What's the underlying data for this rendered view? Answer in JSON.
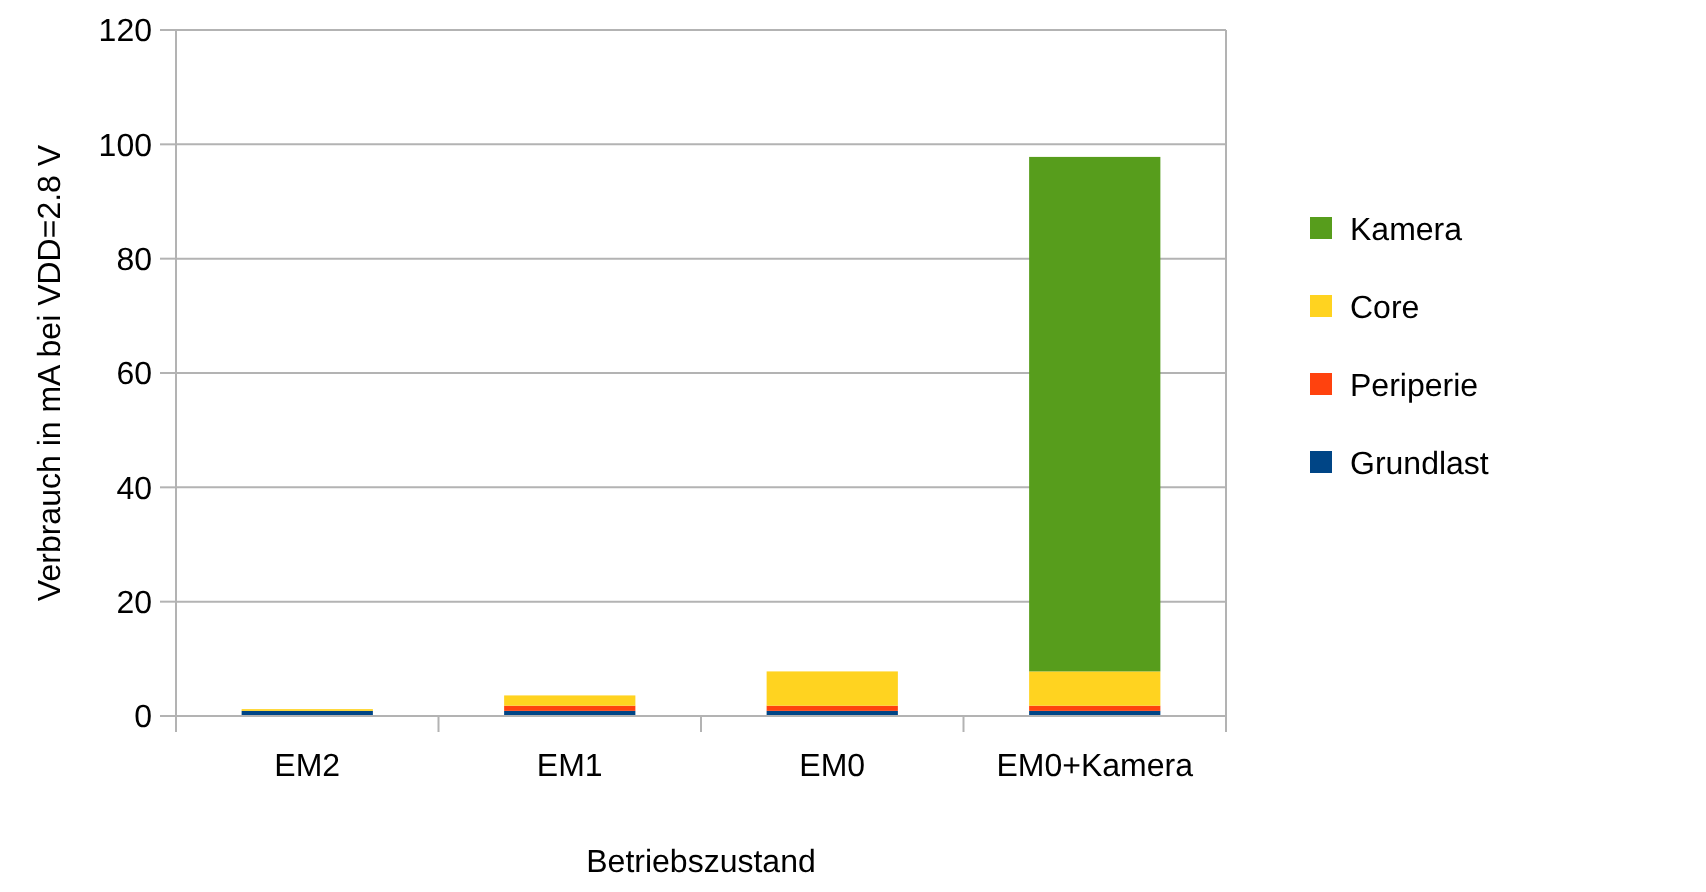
{
  "chart_data": {
    "type": "bar",
    "stacked": true,
    "xlabel": "Betriebszustand",
    "ylabel": "Verbrauch in mA bei VDD=2.8 V",
    "categories": [
      "EM2",
      "EM1",
      "EM0",
      "EM0+Kamera"
    ],
    "series": [
      {
        "name": "Grundlast",
        "color": "#004586",
        "values": [
          0.9,
          0.9,
          0.9,
          0.9
        ]
      },
      {
        "name": "Periperie",
        "color": "#ff420e",
        "values": [
          0,
          0.9,
          0.9,
          0.9
        ]
      },
      {
        "name": "Core",
        "color": "#ffd320",
        "values": [
          0.3,
          1.8,
          6,
          6
        ]
      },
      {
        "name": "Kamera",
        "color": "#579d1c",
        "values": [
          0,
          0,
          0,
          90
        ]
      }
    ],
    "ylim": [
      0,
      120
    ],
    "yticks": [
      0,
      20,
      40,
      60,
      80,
      100,
      120
    ],
    "grid": "y",
    "legend": "right"
  }
}
